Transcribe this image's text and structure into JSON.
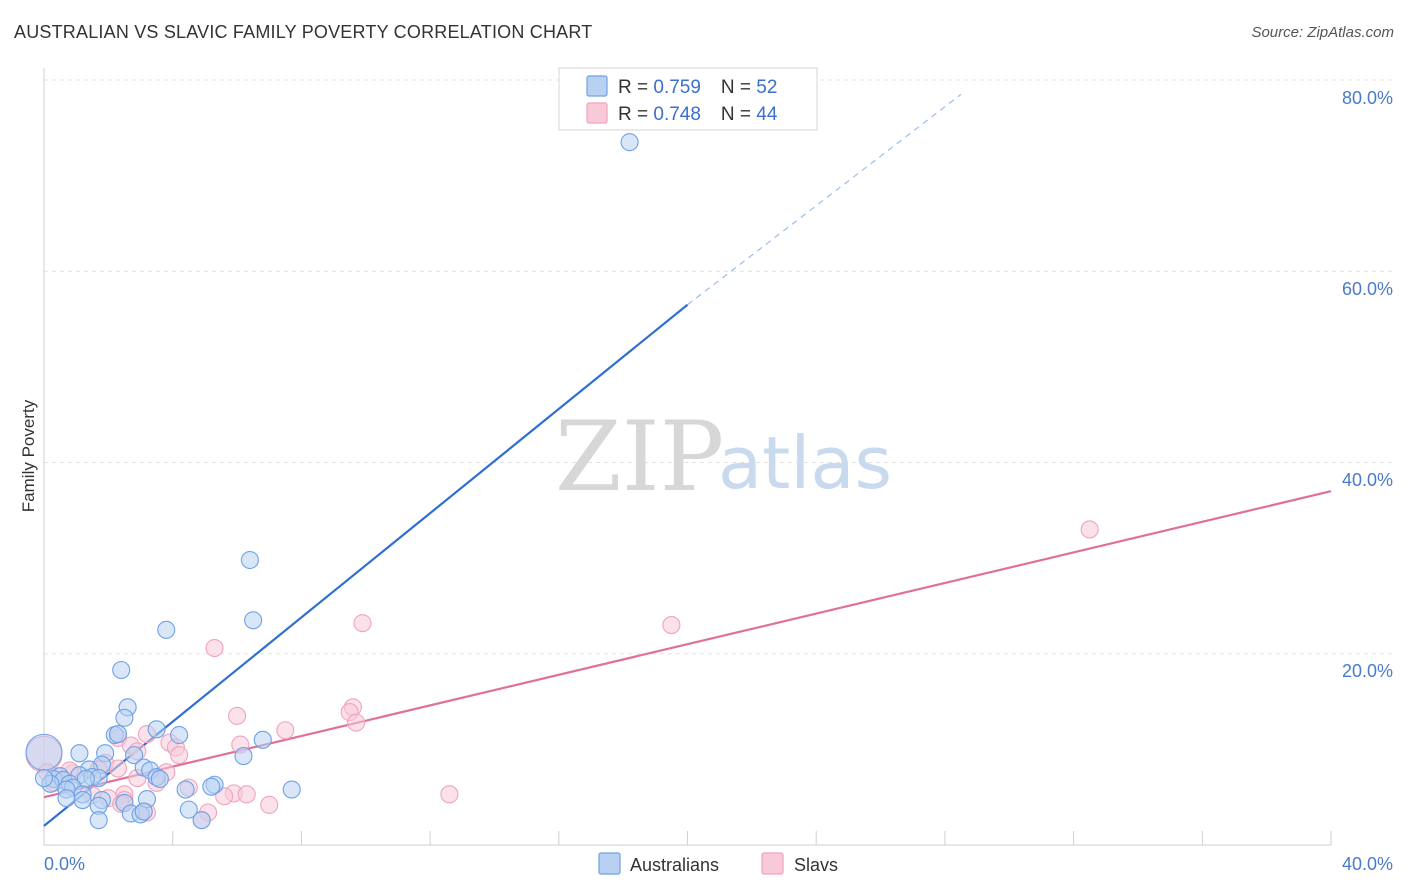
{
  "header": {
    "title": "AUSTRALIAN VS SLAVIC FAMILY POVERTY CORRELATION CHART",
    "source": "Source: ZipAtlas.com"
  },
  "watermark": {
    "zip": "ZIP",
    "atlas": "atlas"
  },
  "chart_data": {
    "type": "scatter",
    "title": "AUSTRALIAN VS SLAVIC FAMILY POVERTY CORRELATION CHART",
    "xlabel": "",
    "ylabel": "Family Poverty",
    "xlim": [
      0,
      40
    ],
    "ylim": [
      0,
      80
    ],
    "x_tick_labels": [
      "0.0%",
      "40.0%"
    ],
    "y_tick_labels": [
      "20.0%",
      "40.0%",
      "60.0%",
      "80.0%"
    ],
    "y_tick_values": [
      20,
      40,
      60,
      80
    ],
    "grid": true,
    "legend_top": [
      {
        "r_label": "R = ",
        "r": "0.759",
        "n_label": "N = ",
        "n": "52",
        "color": "#6ea1e6"
      },
      {
        "r_label": "R = ",
        "r": "0.748",
        "n_label": "N = ",
        "n": "44",
        "color": "#f0a3bd"
      }
    ],
    "series": [
      {
        "name": "Australians",
        "color": "#6ea1e6",
        "fill": "#b8d1f3",
        "line_color": "#2f6fd1",
        "trend": {
          "x0": 0,
          "y0": 2.0,
          "x1": 20,
          "y1": 56.5,
          "dash_to_x": 28.5,
          "dash_to_y": 78.5
        },
        "points": [
          [
            18.2,
            73.5
          ],
          [
            6.4,
            29.8
          ],
          [
            6.5,
            23.5
          ],
          [
            3.8,
            22.5
          ],
          [
            2.4,
            18.3
          ],
          [
            2.6,
            14.4
          ],
          [
            2.5,
            13.3
          ],
          [
            3.5,
            12.1
          ],
          [
            2.2,
            11.5
          ],
          [
            2.3,
            11.6
          ],
          [
            6.8,
            11.0
          ],
          [
            4.2,
            11.5
          ],
          [
            2.8,
            9.4
          ],
          [
            6.2,
            9.3
          ],
          [
            1.1,
            9.6
          ],
          [
            1.9,
            9.6
          ],
          [
            1.8,
            8.4
          ],
          [
            1.4,
            7.9
          ],
          [
            3.1,
            8.1
          ],
          [
            3.3,
            7.8
          ],
          [
            1.1,
            7.3
          ],
          [
            1.5,
            7.1
          ],
          [
            1.7,
            7.0
          ],
          [
            0.5,
            7.2
          ],
          [
            0.3,
            6.9
          ],
          [
            0.6,
            6.8
          ],
          [
            1.3,
            6.9
          ],
          [
            0.2,
            6.4
          ],
          [
            3.5,
            7.1
          ],
          [
            3.6,
            6.9
          ],
          [
            0.8,
            6.4
          ],
          [
            0.9,
            6.0
          ],
          [
            0.7,
            5.8
          ],
          [
            1.2,
            5.3
          ],
          [
            7.7,
            5.8
          ],
          [
            5.3,
            6.3
          ],
          [
            5.2,
            6.1
          ],
          [
            4.4,
            5.8
          ],
          [
            0.7,
            4.9
          ],
          [
            1.2,
            4.7
          ],
          [
            1.8,
            4.7
          ],
          [
            2.5,
            4.4
          ],
          [
            1.7,
            4.1
          ],
          [
            3.2,
            4.8
          ],
          [
            4.5,
            3.7
          ],
          [
            2.7,
            3.3
          ],
          [
            3.0,
            3.2
          ],
          [
            3.1,
            3.5
          ],
          [
            1.7,
            2.6
          ],
          [
            4.9,
            2.6
          ],
          [
            0.0,
            9.7
          ],
          [
            0.0,
            7.0
          ]
        ]
      },
      {
        "name": "Slavs",
        "color": "#f0a3bd",
        "fill": "#f8cad8",
        "line_color": "#e0709a",
        "trend": {
          "x0": 0,
          "y0": 5.0,
          "x1": 40,
          "y1": 37.0
        },
        "points": [
          [
            32.5,
            33.0
          ],
          [
            19.5,
            23.0
          ],
          [
            9.9,
            23.2
          ],
          [
            5.3,
            20.6
          ],
          [
            9.6,
            14.4
          ],
          [
            9.5,
            13.9
          ],
          [
            9.7,
            12.8
          ],
          [
            6.0,
            13.5
          ],
          [
            7.5,
            12.0
          ],
          [
            3.2,
            11.6
          ],
          [
            2.3,
            11.2
          ],
          [
            3.9,
            10.7
          ],
          [
            2.7,
            10.4
          ],
          [
            6.1,
            10.5
          ],
          [
            4.1,
            10.2
          ],
          [
            4.2,
            9.4
          ],
          [
            2.9,
            9.8
          ],
          [
            1.9,
            8.6
          ],
          [
            2.3,
            8.0
          ],
          [
            1.7,
            7.9
          ],
          [
            3.8,
            7.6
          ],
          [
            2.9,
            7.0
          ],
          [
            0.5,
            7.2
          ],
          [
            0.9,
            7.5
          ],
          [
            0.8,
            7.8
          ],
          [
            0.3,
            6.5
          ],
          [
            3.5,
            6.5
          ],
          [
            4.5,
            6.0
          ],
          [
            2.5,
            5.3
          ],
          [
            5.9,
            5.4
          ],
          [
            6.3,
            5.3
          ],
          [
            12.6,
            5.3
          ],
          [
            1.5,
            5.2
          ],
          [
            2.0,
            4.9
          ],
          [
            2.5,
            4.7
          ],
          [
            5.6,
            5.1
          ],
          [
            2.4,
            4.3
          ],
          [
            7.0,
            4.2
          ],
          [
            3.1,
            3.5
          ],
          [
            3.2,
            3.4
          ],
          [
            5.1,
            3.4
          ],
          [
            4.9,
            2.6
          ],
          [
            0.0,
            9.5
          ],
          [
            0.1,
            7.6
          ]
        ]
      }
    ]
  },
  "bottom_legend": [
    {
      "label": "Australians",
      "color": "#6ea1e6"
    },
    {
      "label": "Slavs",
      "color": "#f0a3bd"
    }
  ]
}
